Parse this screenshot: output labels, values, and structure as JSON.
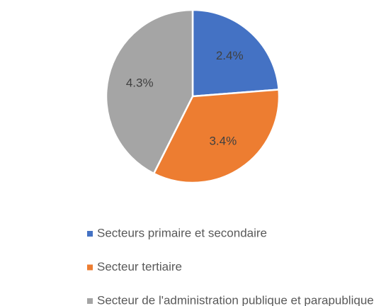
{
  "chart_data": {
    "type": "pie",
    "categories": [
      "Secteurs primaire et secondaire",
      "Secteur tertiaire",
      "Secteur de l'administration publique et parapublique"
    ],
    "values": [
      2.4,
      3.4,
      4.3
    ],
    "value_labels": [
      "2.4%",
      "3.4%",
      "4.3%"
    ],
    "colors": [
      "#4472c4",
      "#ed7d31",
      "#a5a5a5"
    ],
    "legend": "bottom"
  }
}
